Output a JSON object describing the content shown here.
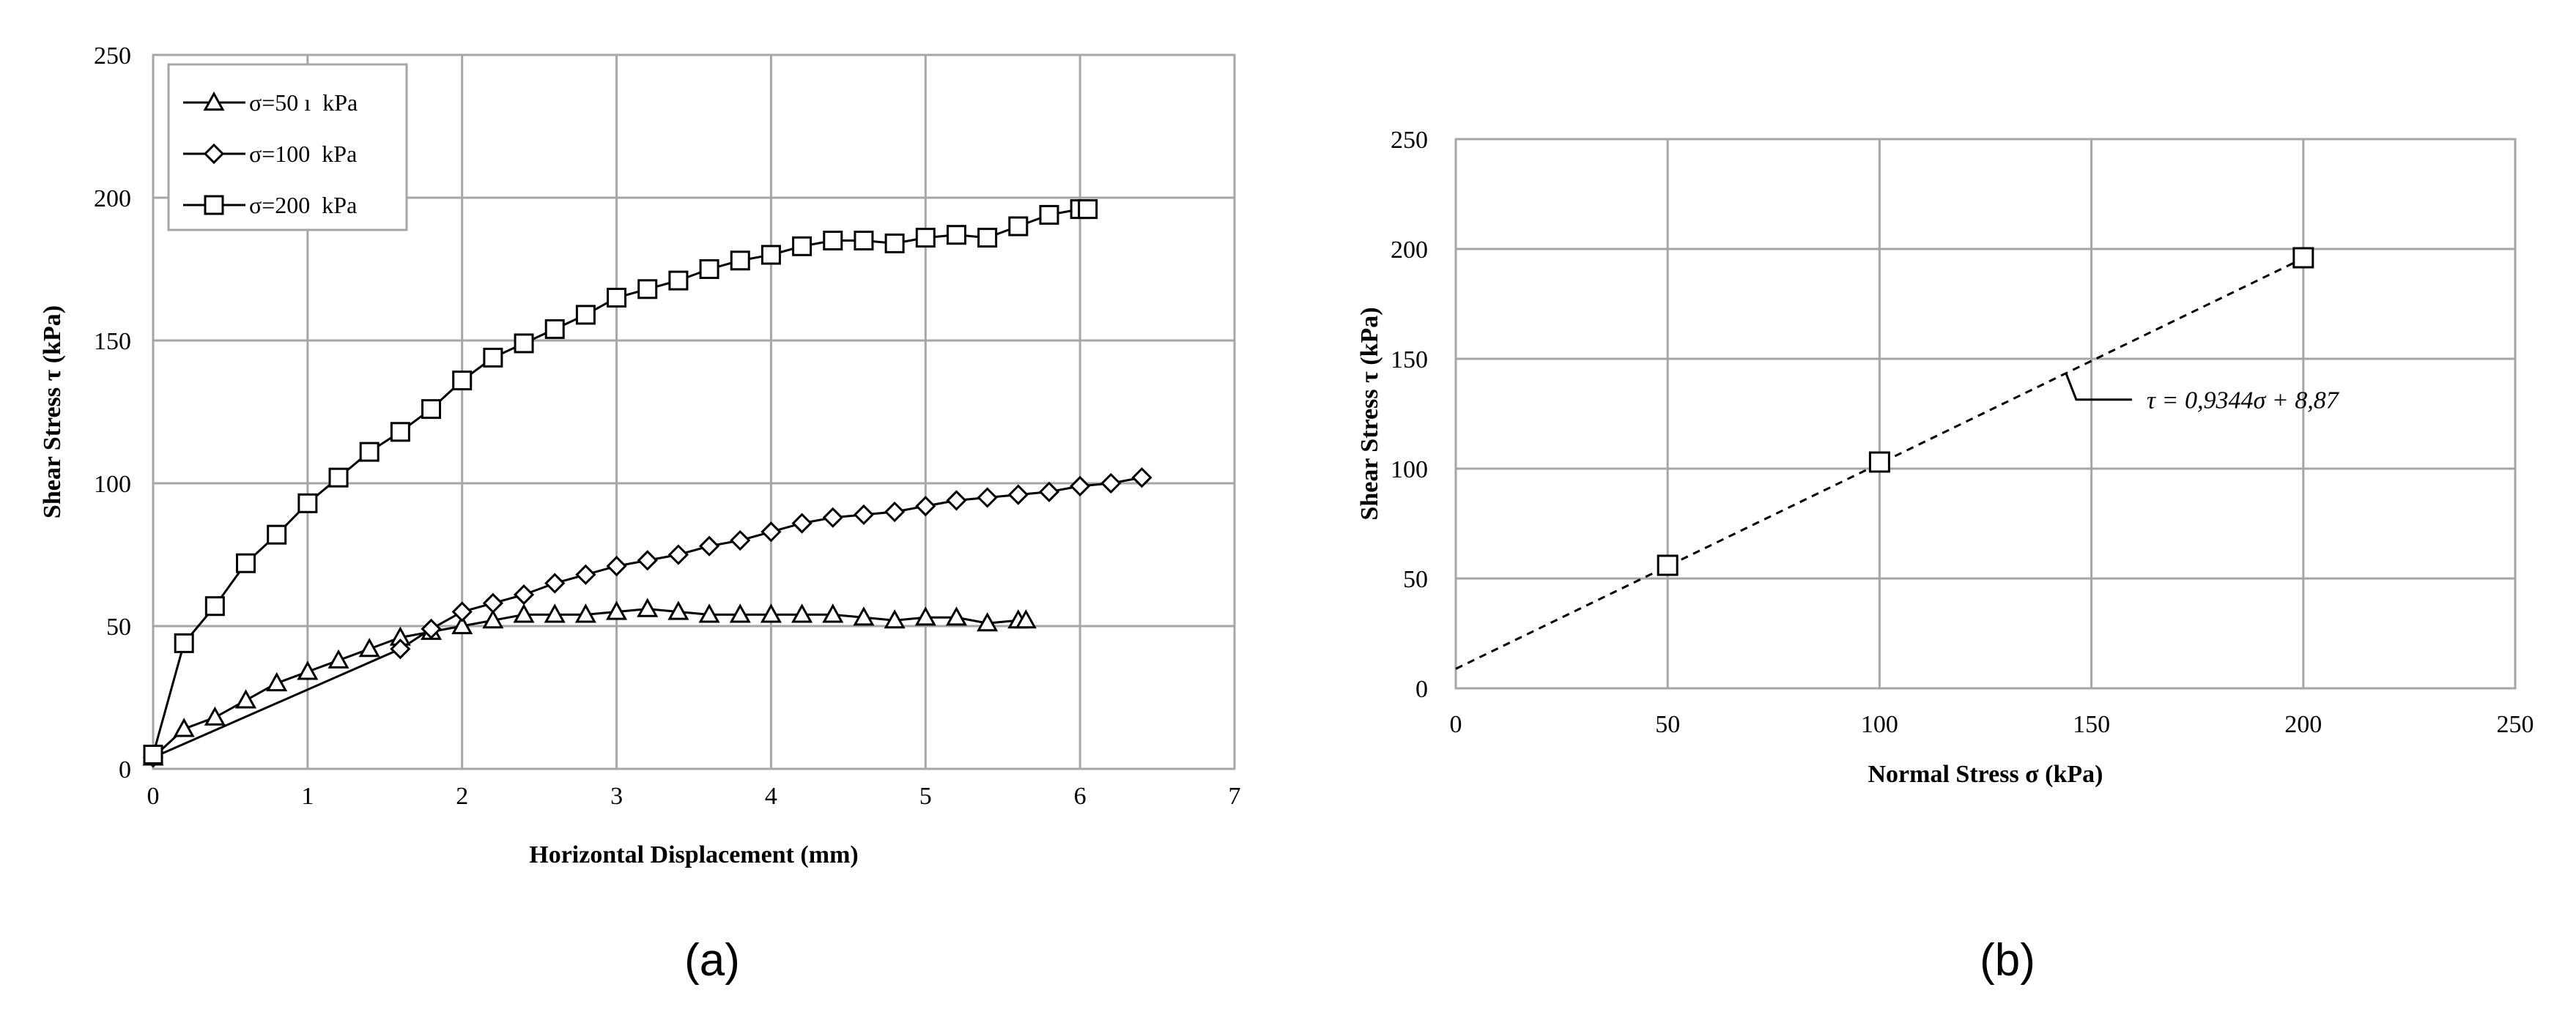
{
  "figure": {
    "panel_a_label": "(a)",
    "panel_b_label": "(b)"
  },
  "chart_data": [
    {
      "type": "line",
      "xlabel": "Horizontal Displacement (mm)",
      "ylabel": "Shear Stress τ (kPa)",
      "xlim": [
        0,
        7
      ],
      "ylim": [
        0,
        250
      ],
      "xticks": [
        0,
        1,
        2,
        3,
        4,
        5,
        6,
        7
      ],
      "yticks": [
        0,
        50,
        100,
        150,
        200,
        250
      ],
      "grid": true,
      "legend_position": "top-left",
      "series": [
        {
          "name": "σ=50 ı  kPa",
          "marker": "triangle",
          "x": [
            0,
            0.2,
            0.4,
            0.6,
            0.8,
            1.0,
            1.2,
            1.4,
            1.6,
            1.8,
            2.0,
            2.2,
            2.4,
            2.6,
            2.8,
            3.0,
            3.2,
            3.4,
            3.6,
            3.8,
            4.0,
            4.2,
            4.4,
            4.6,
            4.8,
            5.0,
            5.2,
            5.4,
            5.6,
            5.65
          ],
          "y": [
            4,
            14,
            18,
            24,
            30,
            34,
            38,
            42,
            46,
            48,
            50,
            52,
            54,
            54,
            54,
            55,
            56,
            55,
            54,
            54,
            54,
            54,
            54,
            53,
            52,
            53,
            53,
            51,
            52,
            52
          ]
        },
        {
          "name": "σ=100  kPa",
          "marker": "diamond",
          "x": [
            0,
            1.6,
            1.8,
            2.0,
            2.2,
            2.4,
            2.6,
            2.8,
            3.0,
            3.2,
            3.4,
            3.6,
            3.8,
            4.0,
            4.2,
            4.4,
            4.6,
            4.8,
            5.0,
            5.2,
            5.4,
            5.6,
            5.8,
            6.0,
            6.2,
            6.4
          ],
          "y": [
            4,
            42,
            49,
            55,
            58,
            61,
            65,
            68,
            71,
            73,
            75,
            78,
            80,
            83,
            86,
            88,
            89,
            90,
            92,
            94,
            95,
            96,
            97,
            99,
            100,
            102
          ]
        },
        {
          "name": "σ=200  kPa",
          "marker": "square",
          "x": [
            0,
            0.2,
            0.4,
            0.6,
            0.8,
            1.0,
            1.2,
            1.4,
            1.6,
            1.8,
            2.0,
            2.2,
            2.4,
            2.6,
            2.8,
            3.0,
            3.2,
            3.4,
            3.6,
            3.8,
            4.0,
            4.2,
            4.4,
            4.6,
            4.8,
            5.0,
            5.2,
            5.4,
            5.6,
            5.8,
            6.0,
            6.05
          ],
          "y": [
            5,
            44,
            57,
            72,
            82,
            93,
            102,
            111,
            118,
            126,
            136,
            144,
            149,
            154,
            159,
            165,
            168,
            171,
            175,
            178,
            180,
            183,
            185,
            185,
            184,
            186,
            187,
            186,
            190,
            194,
            196,
            196
          ]
        }
      ]
    },
    {
      "type": "scatter",
      "xlabel": "Normal  Stress σ (kPa)",
      "ylabel": "Shear Stress τ (kPa)",
      "xlim": [
        0,
        250
      ],
      "ylim": [
        0,
        250
      ],
      "xticks": [
        0,
        50,
        100,
        150,
        200,
        250
      ],
      "yticks": [
        0,
        50,
        100,
        150,
        200,
        250
      ],
      "grid": true,
      "series": [
        {
          "marker": "square",
          "x": [
            50,
            100,
            200
          ],
          "y": [
            56,
            103,
            196
          ]
        }
      ],
      "fit": {
        "slope": 0.9344,
        "intercept": 8.87,
        "x_range": [
          0,
          200
        ],
        "style": "dashed",
        "label": "τ = 0,9344σ + 8,87",
        "label_anchor_x": 144
      }
    }
  ]
}
